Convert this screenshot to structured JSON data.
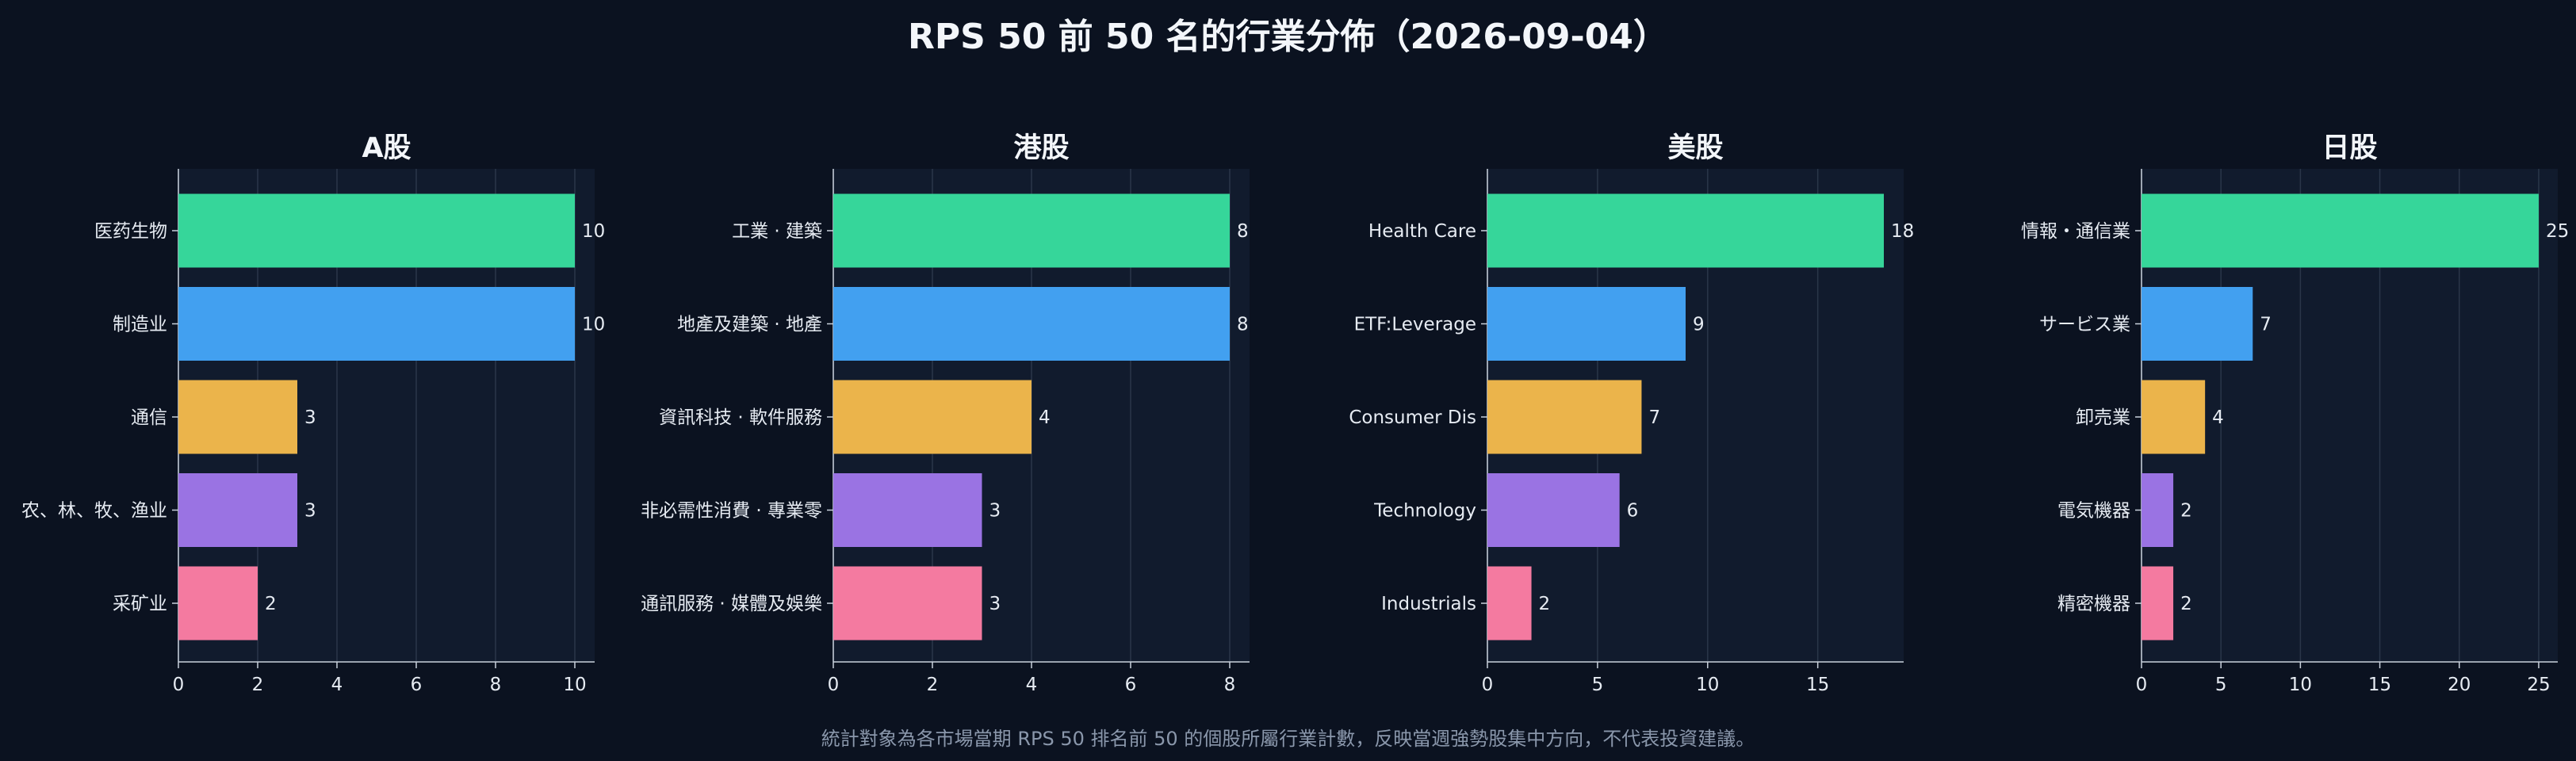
{
  "title": "RPS 50 前 50 名的行業分佈（2026-09-04）",
  "footnote": "統計對象為各市場當期 RPS 50 排名前 50 的個股所屬行業計數，反映當週強勢股集中方向，不代表投資建議。",
  "colors": {
    "background": "#0b1220",
    "plot_bg": "#111b2d",
    "grid": "#2a3649",
    "text": "#e6ebf2",
    "bars": [
      "#36d69a",
      "#42a0f0",
      "#ebb44b",
      "#9a73e3",
      "#f47aa0"
    ]
  },
  "chart_data": [
    {
      "type": "bar",
      "orientation": "horizontal",
      "title": "A股",
      "categories": [
        "医药生物",
        "制造业",
        "通信",
        "农、林、牧、渔业",
        "采矿业"
      ],
      "values": [
        10,
        10,
        3,
        3,
        2
      ],
      "xlim": [
        0,
        10.5
      ],
      "xticks": [
        0,
        2,
        4,
        6,
        8,
        10
      ],
      "grid": true
    },
    {
      "type": "bar",
      "orientation": "horizontal",
      "title": "港股",
      "categories": [
        "工業 · 建築",
        "地產及建築 · 地產",
        "資訊科技 · 軟件服務",
        "非必需性消費 · 專業零",
        "通訊服務 · 媒體及娛樂"
      ],
      "values": [
        8,
        8,
        4,
        3,
        3
      ],
      "xlim": [
        0,
        8.4
      ],
      "xticks": [
        0,
        2,
        4,
        6,
        8
      ],
      "grid": true
    },
    {
      "type": "bar",
      "orientation": "horizontal",
      "title": "美股",
      "categories": [
        "Health Care",
        "ETF:Leverage",
        "Consumer Dis",
        "Technology",
        "Industrials"
      ],
      "values": [
        18,
        9,
        7,
        6,
        2
      ],
      "xlim": [
        0,
        18.9
      ],
      "xticks": [
        0,
        5,
        10,
        15
      ],
      "grid": true
    },
    {
      "type": "bar",
      "orientation": "horizontal",
      "title": "日股",
      "categories": [
        "情報・通信業",
        "サービス業",
        "卸売業",
        "電気機器",
        "精密機器"
      ],
      "values": [
        25,
        7,
        4,
        2,
        2
      ],
      "xlim": [
        0,
        26.2
      ],
      "xticks": [
        0,
        5,
        10,
        15,
        20,
        25
      ],
      "grid": true
    }
  ]
}
